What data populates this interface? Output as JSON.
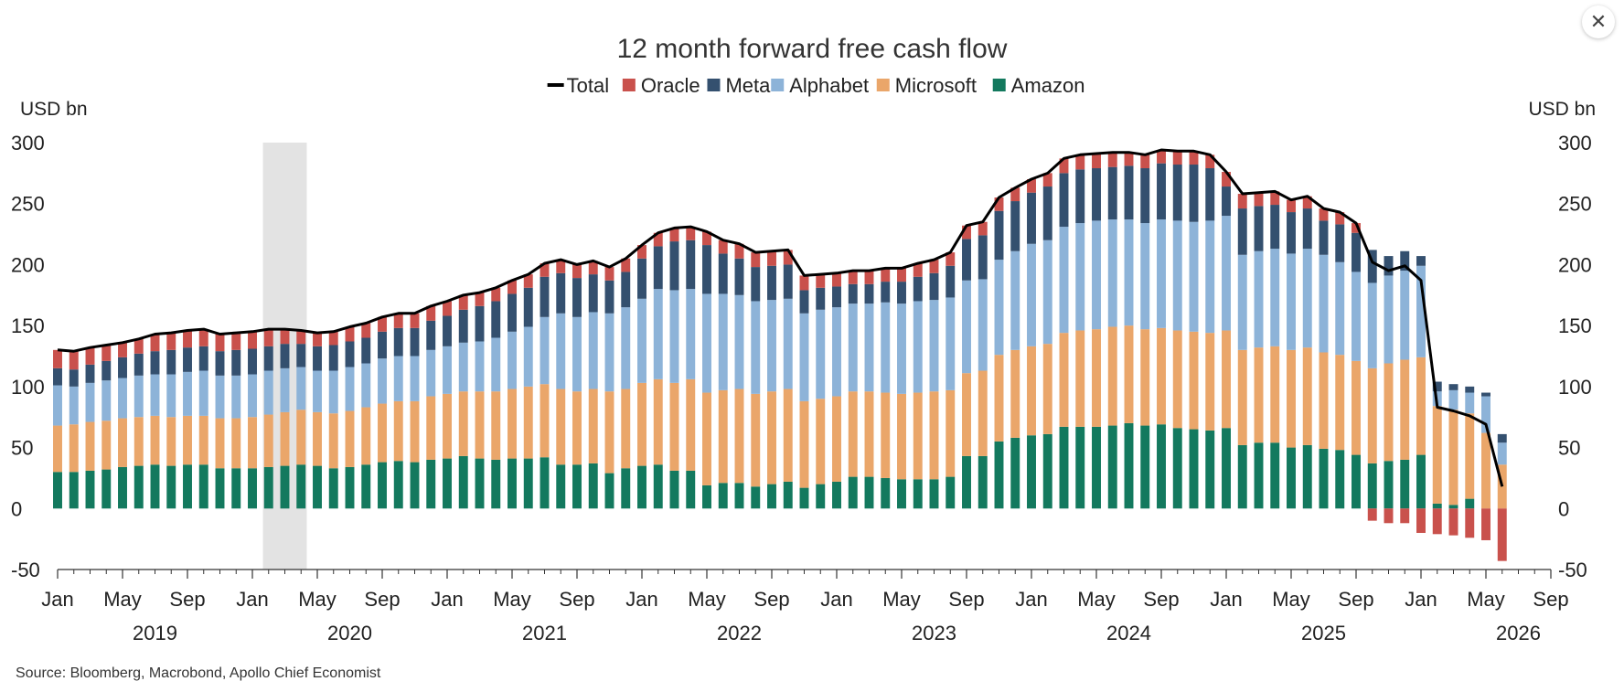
{
  "close_button": {
    "icon": "close-icon",
    "glyph": "✕"
  },
  "source": "Source: Bloomberg, Macrobond, Apollo Chief Economist",
  "colors": {
    "Total": "#000000",
    "Oracle": "#c9514c",
    "Meta": "#34506f",
    "Alphabet": "#8db3d8",
    "Microsoft": "#eaa66a",
    "Amazon": "#13795e",
    "shade": "#e3e3e3"
  },
  "chart_data": {
    "type": "bar",
    "stacked": true,
    "title": "12 month forward free cash flow",
    "ylabel_left": "USD bn",
    "ylabel_right": "USD bn",
    "ylim": [
      -50,
      300
    ],
    "yticks": [
      -50,
      0,
      50,
      100,
      150,
      200,
      250,
      300
    ],
    "legend": [
      "Total",
      "Oracle",
      "Meta",
      "Alphabet",
      "Microsoft",
      "Amazon"
    ],
    "legend_position": "top",
    "x_month_ticks": [
      "Jan",
      "May",
      "Sep",
      "Jan",
      "May",
      "Sep",
      "Jan",
      "May",
      "Sep",
      "Jan",
      "May",
      "Sep",
      "Jan",
      "May",
      "Sep",
      "Jan",
      "May",
      "Sep",
      "Jan",
      "May",
      "Sep",
      "Jan",
      "May",
      "Sep"
    ],
    "x_years": [
      "2019",
      "2020",
      "2021",
      "2022",
      "2023",
      "2024",
      "2025",
      "2026"
    ],
    "x_start": "2019-01",
    "x_end": "2026-09",
    "shaded_period": [
      "2020-02",
      "2020-04"
    ],
    "x": [
      "2019-01",
      "2019-02",
      "2019-03",
      "2019-04",
      "2019-05",
      "2019-06",
      "2019-07",
      "2019-08",
      "2019-09",
      "2019-10",
      "2019-11",
      "2019-12",
      "2020-01",
      "2020-02",
      "2020-03",
      "2020-04",
      "2020-05",
      "2020-06",
      "2020-07",
      "2020-08",
      "2020-09",
      "2020-10",
      "2020-11",
      "2020-12",
      "2021-01",
      "2021-02",
      "2021-03",
      "2021-04",
      "2021-05",
      "2021-06",
      "2021-07",
      "2021-08",
      "2021-09",
      "2021-10",
      "2021-11",
      "2021-12",
      "2022-01",
      "2022-02",
      "2022-03",
      "2022-04",
      "2022-05",
      "2022-06",
      "2022-07",
      "2022-08",
      "2022-09",
      "2022-10",
      "2022-11",
      "2022-12",
      "2023-01",
      "2023-02",
      "2023-03",
      "2023-04",
      "2023-05",
      "2023-06",
      "2023-07",
      "2023-08",
      "2023-09",
      "2023-10",
      "2023-11",
      "2023-12",
      "2024-01",
      "2024-02",
      "2024-03",
      "2024-04",
      "2024-05",
      "2024-06",
      "2024-07",
      "2024-08",
      "2024-09",
      "2024-10",
      "2024-11",
      "2024-12",
      "2025-01",
      "2025-02",
      "2025-03",
      "2025-04",
      "2025-05",
      "2025-06",
      "2025-07",
      "2025-08",
      "2025-09",
      "2025-10",
      "2025-11",
      "2025-12",
      "2026-01",
      "2026-02",
      "2026-03",
      "2026-04",
      "2026-05",
      "2026-06"
    ],
    "series": [
      {
        "name": "Amazon",
        "values": [
          30,
          30,
          31,
          32,
          34,
          35,
          36,
          35,
          36,
          36,
          33,
          33,
          33,
          34,
          35,
          36,
          35,
          33,
          34,
          36,
          38,
          39,
          38,
          40,
          41,
          43,
          41,
          40,
          41,
          41,
          42,
          36,
          36,
          37,
          29,
          33,
          35,
          36,
          31,
          31,
          19,
          21,
          21,
          18,
          20,
          22,
          17,
          20,
          22,
          26,
          26,
          25,
          24,
          24,
          24,
          26,
          43,
          43,
          55,
          58,
          60,
          61,
          67,
          67,
          67,
          68,
          70,
          68,
          69,
          66,
          65,
          64,
          66,
          52,
          54,
          54,
          50,
          52,
          49,
          48,
          44,
          37,
          39,
          40,
          44,
          4,
          3,
          8,
          0,
          0
        ]
      },
      {
        "name": "Microsoft",
        "values": [
          38,
          39,
          40,
          40,
          40,
          40,
          40,
          40,
          40,
          40,
          41,
          41,
          42,
          43,
          44,
          45,
          44,
          45,
          46,
          47,
          48,
          49,
          50,
          52,
          53,
          53,
          55,
          56,
          57,
          59,
          60,
          62,
          60,
          61,
          67,
          65,
          68,
          70,
          72,
          75,
          76,
          76,
          77,
          76,
          76,
          76,
          71,
          70,
          70,
          70,
          70,
          70,
          70,
          71,
          72,
          71,
          68,
          70,
          71,
          72,
          73,
          74,
          77,
          79,
          80,
          81,
          80,
          79,
          79,
          80,
          80,
          80,
          80,
          78,
          78,
          79,
          80,
          80,
          79,
          78,
          77,
          78,
          80,
          82,
          80,
          80,
          78,
          70,
          62,
          36
        ]
      },
      {
        "name": "Alphabet",
        "values": [
          33,
          31,
          32,
          33,
          33,
          34,
          34,
          35,
          36,
          37,
          35,
          35,
          35,
          36,
          36,
          35,
          34,
          35,
          36,
          36,
          37,
          37,
          37,
          38,
          39,
          40,
          41,
          44,
          47,
          49,
          55,
          62,
          61,
          63,
          64,
          67,
          69,
          74,
          76,
          74,
          81,
          79,
          77,
          76,
          75,
          74,
          72,
          73,
          73,
          72,
          72,
          74,
          74,
          75,
          75,
          76,
          76,
          75,
          78,
          81,
          84,
          85,
          87,
          88,
          89,
          88,
          87,
          87,
          89,
          90,
          90,
          92,
          94,
          78,
          79,
          80,
          79,
          81,
          80,
          76,
          73,
          70,
          72,
          73,
          75,
          12,
          16,
          17,
          30,
          18
        ]
      },
      {
        "name": "Meta",
        "values": [
          14,
          14,
          15,
          16,
          17,
          18,
          19,
          20,
          20,
          20,
          20,
          21,
          21,
          20,
          20,
          19,
          20,
          21,
          21,
          21,
          22,
          23,
          23,
          24,
          25,
          27,
          29,
          30,
          31,
          32,
          33,
          33,
          32,
          31,
          27,
          29,
          33,
          35,
          40,
          40,
          40,
          33,
          30,
          28,
          28,
          28,
          19,
          18,
          17,
          16,
          16,
          17,
          18,
          20,
          22,
          26,
          34,
          36,
          40,
          41,
          42,
          44,
          44,
          44,
          43,
          43,
          44,
          45,
          46,
          46,
          47,
          43,
          24,
          38,
          37,
          36,
          34,
          33,
          28,
          31,
          32,
          27,
          16,
          16,
          8,
          8,
          5,
          5,
          3,
          7
        ]
      },
      {
        "name": "Oracle",
        "values": [
          15,
          15,
          14,
          13,
          12,
          12,
          14,
          14,
          14,
          14,
          14,
          14,
          14,
          13,
          12,
          11,
          11,
          11,
          12,
          12,
          12,
          12,
          12,
          12,
          12,
          12,
          11,
          11,
          11,
          11,
          11,
          11,
          11,
          11,
          11,
          11,
          11,
          11,
          11,
          11,
          11,
          11,
          12,
          12,
          12,
          12,
          12,
          11,
          11,
          11,
          11,
          11,
          11,
          11,
          11,
          11,
          11,
          11,
          11,
          11,
          11,
          11,
          12,
          12,
          12,
          12,
          11,
          11,
          11,
          11,
          11,
          11,
          12,
          12,
          11,
          11,
          10,
          10,
          10,
          10,
          8,
          -10,
          -12,
          -12,
          -20,
          -21,
          -22,
          -24,
          -26,
          -43
        ]
      }
    ],
    "total": {
      "name": "Total",
      "values": [
        130,
        129,
        132,
        134,
        136,
        139,
        143,
        144,
        146,
        147,
        143,
        144,
        145,
        147,
        147,
        146,
        144,
        145,
        149,
        152,
        157,
        160,
        160,
        166,
        170,
        175,
        177,
        181,
        187,
        192,
        201,
        204,
        200,
        203,
        198,
        205,
        216,
        226,
        230,
        231,
        227,
        220,
        217,
        210,
        211,
        212,
        191,
        192,
        193,
        195,
        195,
        197,
        197,
        201,
        204,
        210,
        232,
        235,
        255,
        263,
        270,
        275,
        287,
        290,
        291,
        292,
        292,
        290,
        294,
        293,
        293,
        290,
        276,
        258,
        259,
        260,
        253,
        256,
        246,
        243,
        234,
        202,
        195,
        199,
        187,
        83,
        80,
        76,
        69,
        18
      ]
    }
  }
}
